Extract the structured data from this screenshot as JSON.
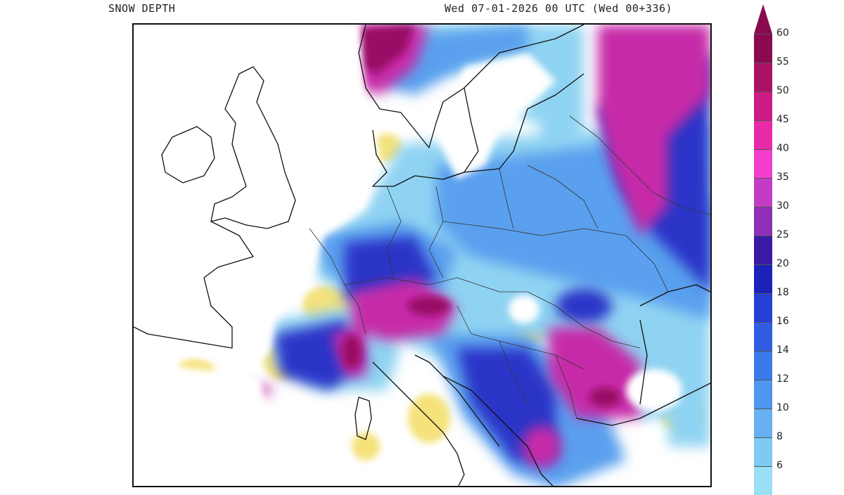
{
  "header": {
    "product": "SNOW DEPTH",
    "valid_time": "Wed 07-01-2026 00 UTC (Wed 00+336)"
  },
  "colorbar": {
    "levels": [
      {
        "label": "60",
        "color": "#8a0a4f"
      },
      {
        "label": "55",
        "color": "#a81265"
      },
      {
        "label": "50",
        "color": "#cc1a86"
      },
      {
        "label": "45",
        "color": "#e92aa8"
      },
      {
        "label": "40",
        "color": "#f23ecb"
      },
      {
        "label": "35",
        "color": "#c33cc6"
      },
      {
        "label": "30",
        "color": "#8f2fb8"
      },
      {
        "label": "25",
        "color": "#3a1aa3"
      },
      {
        "label": "20",
        "color": "#1c22b8"
      },
      {
        "label": "18",
        "color": "#2440d4"
      },
      {
        "label": "16",
        "color": "#2f5ee0"
      },
      {
        "label": "14",
        "color": "#3b7ae8"
      },
      {
        "label": "12",
        "color": "#4f96ee"
      },
      {
        "label": "10",
        "color": "#67b0f2"
      },
      {
        "label": "8",
        "color": "#7fcaf2"
      },
      {
        "label": "6",
        "color": "#9ae0f4"
      }
    ]
  }
}
